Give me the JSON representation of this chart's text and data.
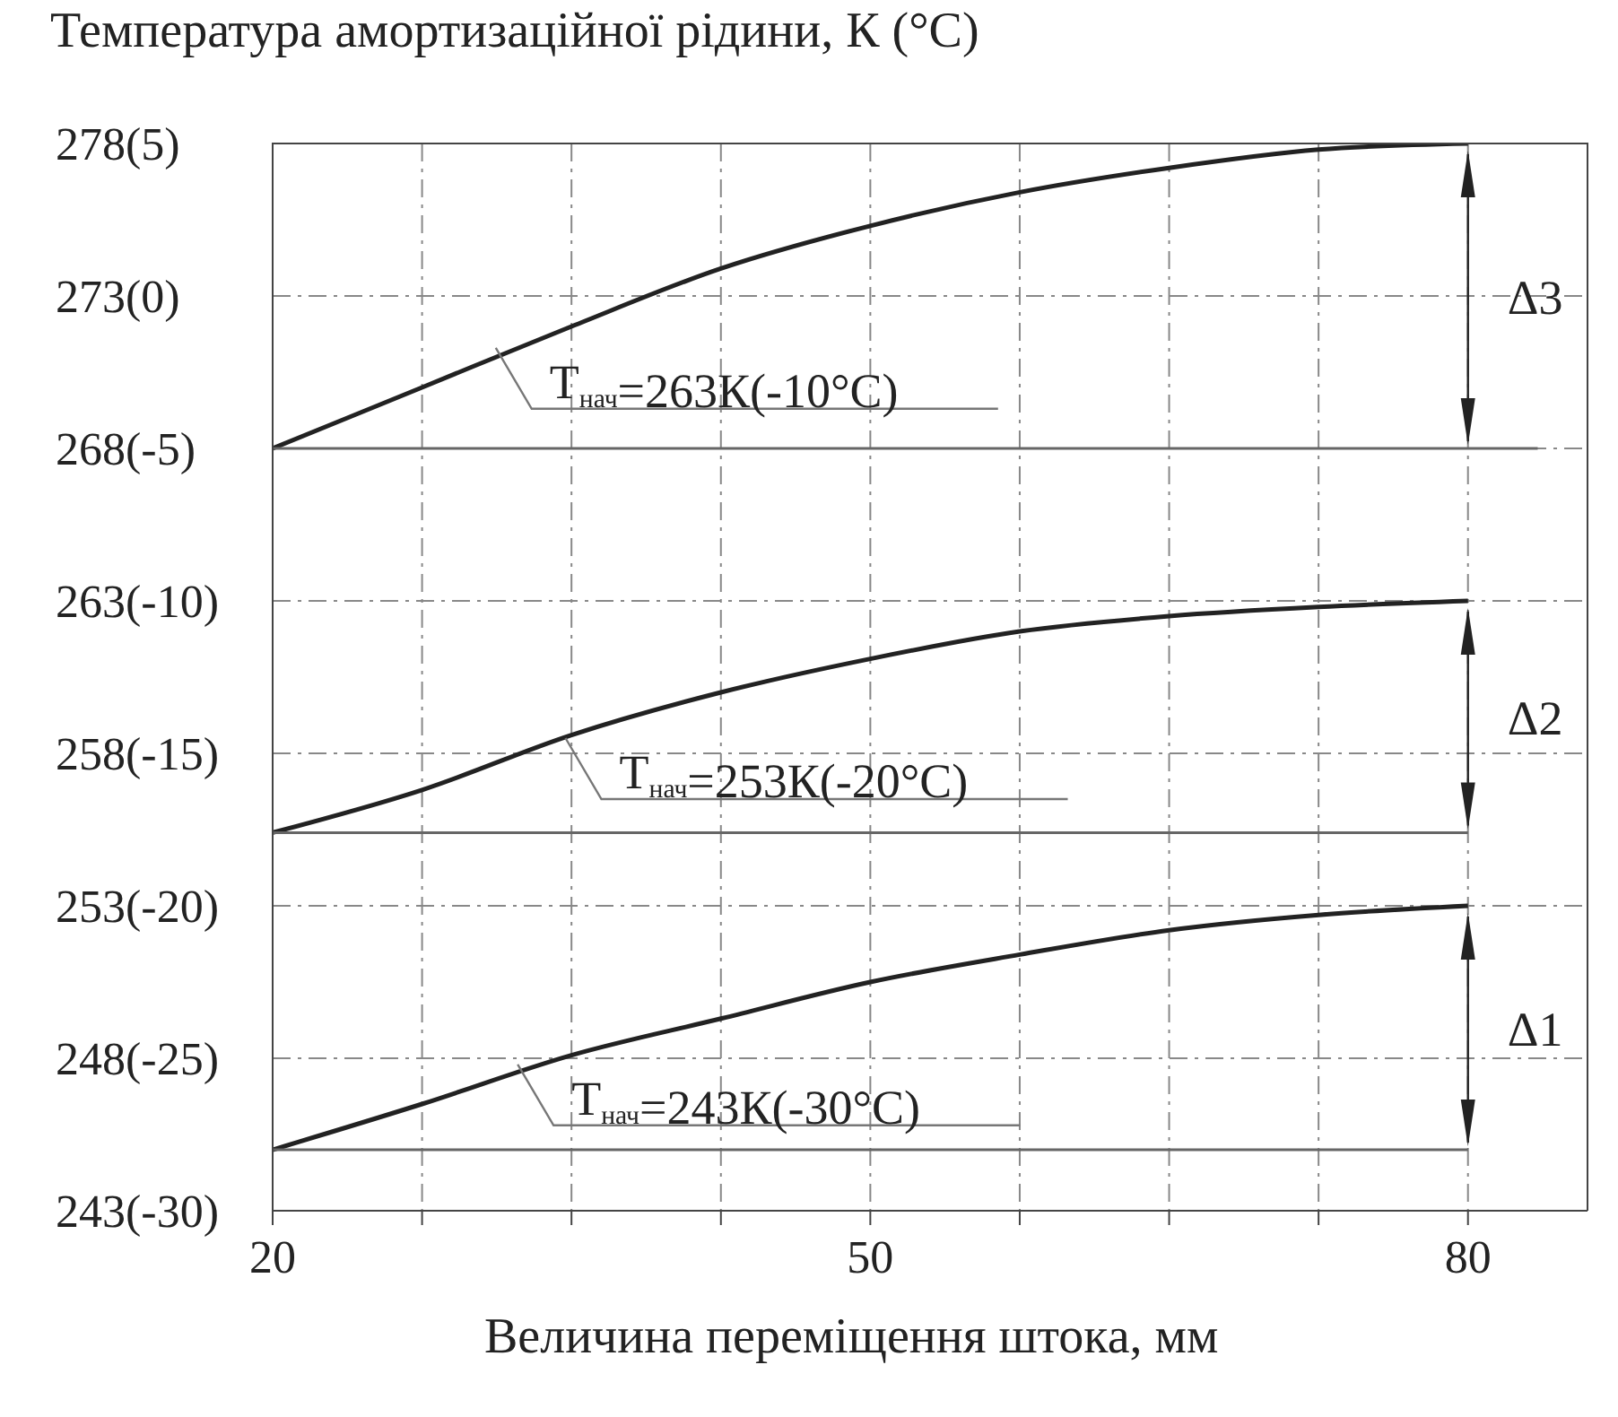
{
  "chart_data": {
    "type": "line",
    "title": "Температура амортизаційної рідини, К (°C)",
    "xlabel": "Величина переміщення штока, мм",
    "xlim": [
      20,
      86
    ],
    "xticks": [
      20,
      {
        "value": 27.5,
        "label": null
      },
      {
        "value": 35,
        "label": null
      },
      {
        "value": 42.5,
        "label": null
      },
      50,
      {
        "value": 57.5,
        "label": null
      },
      {
        "value": 65,
        "label": null
      },
      {
        "value": 72.5,
        "label": null
      },
      80
    ],
    "ylim": [
      243,
      278
    ],
    "yticks": [
      243,
      248,
      253,
      258,
      263,
      268,
      273,
      278
    ],
    "y2lim": [
      -30,
      5
    ],
    "y2ticks": [
      {
        "value": -30,
        "label": "(-30)"
      },
      {
        "value": -25,
        "label": "(-25)"
      },
      {
        "value": -20,
        "label": "(-20)"
      },
      {
        "value": -15,
        "label": "(-15)"
      },
      {
        "value": -10,
        "label": "(-10)"
      },
      {
        "value": -5,
        "label": "(-5)"
      },
      {
        "value": 0,
        "label": "(0)"
      },
      {
        "value": 5,
        "label": "(5)"
      }
    ],
    "grid": true,
    "line_style": "solid",
    "marker": "none",
    "series": [
      {
        "color": "#222222",
        "x": [
          20,
          27.5,
          35,
          42.5,
          50,
          57.5,
          65,
          72.5,
          80
        ],
        "values": [
          245,
          246.5,
          248.1,
          249.3,
          250.5,
          251.4,
          252.2,
          252.7,
          253
        ]
      },
      {
        "color": "#666666",
        "x": [
          20,
          80
        ],
        "values": [
          245,
          245
        ]
      },
      {
        "color": "#222222",
        "x": [
          20,
          27.5,
          35,
          42.5,
          50,
          57.5,
          65,
          72.5,
          80
        ],
        "values": [
          255.4,
          256.8,
          258.6,
          260,
          261.1,
          262,
          262.5,
          262.8,
          263
        ]
      },
      {
        "color": "#666666",
        "x": [
          20,
          80
        ],
        "values": [
          255.4,
          255.4
        ]
      },
      {
        "color": "#222222",
        "x": [
          20,
          27.5,
          35,
          42.5,
          50,
          57.5,
          65,
          72.5,
          80
        ],
        "values": [
          268,
          270,
          272,
          273.9,
          275.3,
          276.4,
          277.2,
          277.8,
          278
        ]
      },
      {
        "color": "#666666",
        "x": [
          20,
          83.5
        ],
        "values": [
          268,
          268
        ]
      }
    ],
    "annotations": [
      {
        "text": "T$_{нач}$=243К(-30°C)",
        "x": 32.3,
        "y": 247.8
      },
      {
        "text": "T$_{нач}$=253К(-20°C)",
        "x": 34.7,
        "y": 258.5
      },
      {
        "text": "T$_{нач}$=263К(-10°C)",
        "x": 31.2,
        "y": 271.3
      },
      "Δ1",
      "Δ2",
      "Δ3"
    ]
  }
}
